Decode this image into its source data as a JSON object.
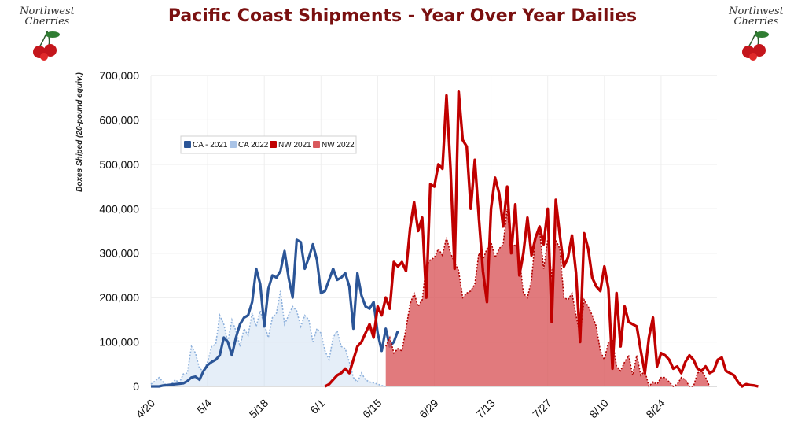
{
  "header": {
    "title": "Pacific Coast Shipments - Year Over Year Dailies"
  },
  "logo": {
    "text_line1": "Northwest",
    "text_line2": "Cherries"
  },
  "colors": {
    "ca2021": "#2b5597",
    "ca2022": "#a9c3e6",
    "nw2021": "#c00000",
    "nw2022": "#d9595d"
  },
  "chart_data": {
    "type": "line",
    "title": "Pacific Coast Shipments - Year Over Year Dailies",
    "xlabel": "",
    "ylabel": "Boxes Shiped (20-pound equiv.)",
    "ylim": [
      0,
      700000
    ],
    "ytick_labels": [
      "0",
      "100,000",
      "200,000",
      "300,000",
      "400,000",
      "500,000",
      "600,000",
      "700,000"
    ],
    "xtick_labels": [
      "4/20",
      "5/4",
      "5/18",
      "6/1",
      "6/15",
      "6/29",
      "7/13",
      "7/27",
      "8/10",
      "8/24"
    ],
    "grid": true,
    "legend_position": "top-left",
    "series": [
      {
        "name": "CA - 2021",
        "style": "line",
        "start": "4/20",
        "values": [
          0,
          0,
          0,
          2000,
          3000,
          4000,
          5000,
          6000,
          7000,
          12000,
          20000,
          22000,
          15000,
          35000,
          48000,
          55000,
          60000,
          70000,
          110000,
          100000,
          70000,
          110000,
          140000,
          155000,
          160000,
          190000,
          265000,
          230000,
          135000,
          220000,
          250000,
          245000,
          260000,
          305000,
          245000,
          200000,
          330000,
          325000,
          265000,
          290000,
          320000,
          285000,
          210000,
          215000,
          240000,
          265000,
          240000,
          245000,
          255000,
          225000,
          130000,
          255000,
          205000,
          180000,
          175000,
          190000,
          120000,
          80000,
          130000,
          90000,
          100000,
          125000
        ]
      },
      {
        "name": "CA 2022",
        "style": "area",
        "start": "4/20",
        "values": [
          5000,
          12000,
          20000,
          10000,
          0,
          5000,
          15000,
          8000,
          28000,
          30000,
          90000,
          75000,
          40000,
          35000,
          55000,
          90000,
          95000,
          160000,
          140000,
          100000,
          150000,
          125000,
          90000,
          130000,
          115000,
          165000,
          135000,
          170000,
          140000,
          110000,
          155000,
          165000,
          215000,
          140000,
          160000,
          180000,
          170000,
          135000,
          160000,
          150000,
          100000,
          130000,
          120000,
          80000,
          60000,
          110000,
          125000,
          90000,
          85000,
          55000,
          20000,
          10000,
          30000,
          15000,
          10000,
          8000,
          5000,
          2000,
          0
        ]
      },
      {
        "name": "NW 2021",
        "style": "line",
        "start": "6/2",
        "values": [
          0,
          5000,
          15000,
          25000,
          30000,
          40000,
          30000,
          60000,
          90000,
          100000,
          120000,
          140000,
          110000,
          180000,
          160000,
          200000,
          175000,
          280000,
          270000,
          280000,
          260000,
          355000,
          415000,
          350000,
          380000,
          200000,
          455000,
          450000,
          500000,
          490000,
          655000,
          490000,
          265000,
          665000,
          555000,
          540000,
          400000,
          510000,
          380000,
          260000,
          190000,
          400000,
          470000,
          435000,
          360000,
          450000,
          300000,
          410000,
          250000,
          300000,
          380000,
          295000,
          335000,
          360000,
          320000,
          400000,
          145000,
          420000,
          340000,
          270000,
          290000,
          340000,
          255000,
          100000,
          345000,
          310000,
          245000,
          225000,
          215000,
          270000,
          220000,
          40000,
          210000,
          90000,
          180000,
          145000,
          140000,
          135000,
          80000,
          30000,
          110000,
          155000,
          45000,
          75000,
          70000,
          60000,
          40000,
          45000,
          30000,
          55000,
          70000,
          60000,
          40000,
          35000,
          45000,
          30000,
          35000,
          60000,
          65000,
          35000,
          30000,
          25000,
          10000,
          0,
          5000,
          3000,
          2000,
          0
        ]
      },
      {
        "name": "NW 2022",
        "style": "area",
        "start": "6/17",
        "values": [
          90000,
          110000,
          75000,
          85000,
          80000,
          130000,
          185000,
          210000,
          180000,
          195000,
          270000,
          285000,
          290000,
          310000,
          295000,
          335000,
          300000,
          280000,
          260000,
          200000,
          210000,
          215000,
          230000,
          300000,
          285000,
          310000,
          325000,
          290000,
          310000,
          320000,
          400000,
          310000,
          320000,
          290000,
          210000,
          200000,
          240000,
          340000,
          350000,
          265000,
          330000,
          245000,
          330000,
          310000,
          200000,
          195000,
          210000,
          160000,
          115000,
          195000,
          180000,
          160000,
          135000,
          80000,
          60000,
          100000,
          105000,
          45000,
          35000,
          55000,
          70000,
          25000,
          70000,
          25000,
          35000,
          0,
          10000,
          5000,
          20000,
          20000,
          10000,
          0,
          5000,
          20000,
          15000,
          0,
          0,
          30000,
          35000,
          20000,
          0
        ]
      }
    ]
  }
}
